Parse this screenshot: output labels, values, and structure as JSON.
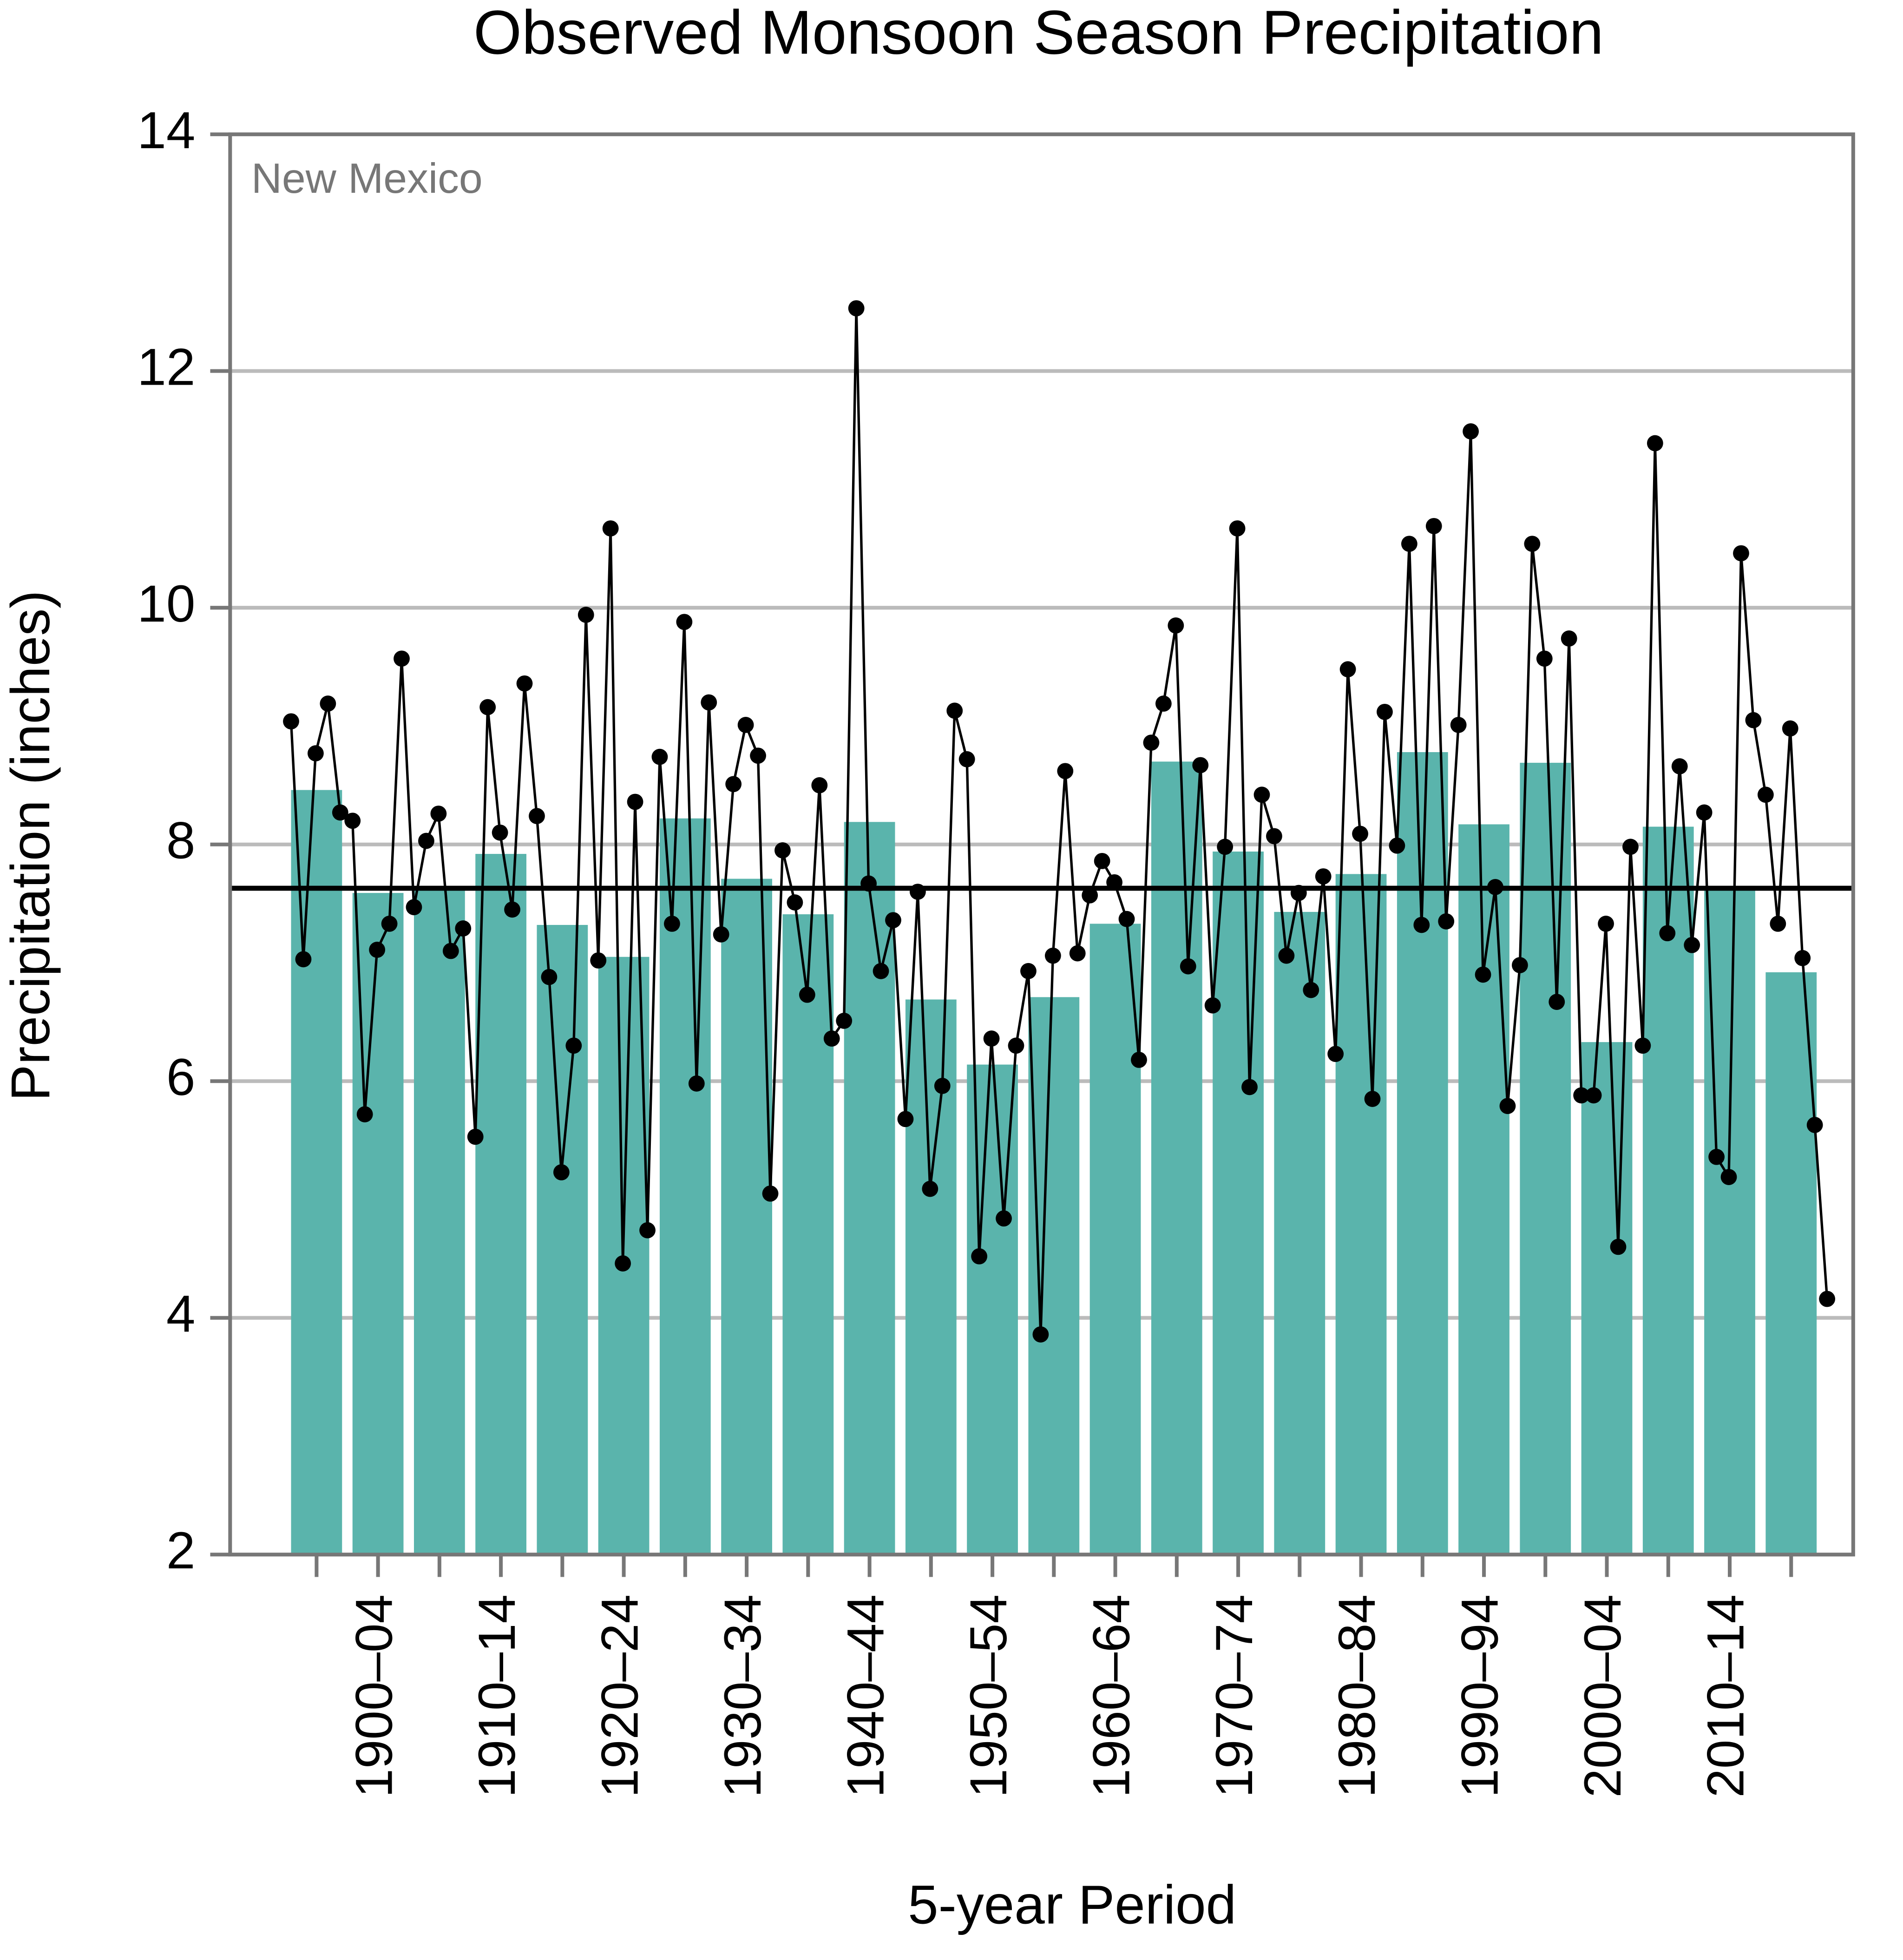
{
  "chart_data": {
    "type": "bar",
    "title": "Observed Monsoon Season Precipitation",
    "x_label": "5-year Period",
    "y_label": "Precipitation (inches)",
    "annotation": "New Mexico",
    "categories": [
      null,
      "1900–04",
      null,
      "1910–14",
      null,
      "1920–24",
      null,
      "1930–34",
      null,
      "1940–44",
      null,
      "1950–54",
      null,
      "1960–64",
      null,
      "1970–74",
      null,
      "1980–84",
      null,
      "1990–94",
      null,
      "2000–04",
      null,
      "2010–14",
      null
    ],
    "values": [
      8.46,
      7.59,
      7.62,
      7.92,
      7.32,
      7.05,
      8.22,
      7.71,
      7.41,
      8.19,
      6.69,
      6.14,
      6.71,
      7.33,
      8.7,
      7.94,
      7.43,
      7.75,
      8.78,
      8.17,
      8.69,
      6.33,
      8.15,
      7.65,
      6.92
    ],
    "color": "#5ab4ac",
    "annual_values": [
      9.04,
      7.03,
      8.77,
      9.19,
      8.27,
      8.2,
      5.72,
      7.11,
      7.33,
      9.57,
      7.47,
      8.03,
      8.26,
      7.1,
      7.29,
      5.53,
      9.16,
      8.1,
      7.45,
      9.36,
      8.24,
      6.88,
      5.23,
      6.3,
      9.94,
      7.02,
      10.67,
      4.46,
      8.36,
      4.74,
      8.74,
      7.33,
      9.88,
      5.98,
      9.2,
      7.24,
      8.51,
      9.01,
      8.75,
      5.05,
      7.95,
      7.51,
      6.73,
      8.5,
      6.36,
      6.51,
      12.53,
      7.67,
      6.93,
      7.36,
      5.68,
      7.6,
      5.09,
      5.96,
      9.13,
      8.72,
      4.52,
      6.36,
      4.84,
      6.3,
      6.93,
      3.86,
      7.06,
      8.62,
      7.08,
      7.57,
      7.86,
      7.68,
      7.37,
      6.18,
      8.86,
      9.19,
      9.85,
      6.97,
      8.67,
      6.64,
      7.98,
      10.67,
      5.95,
      8.42,
      8.07,
      7.06,
      7.59,
      6.77,
      7.73,
      6.23,
      9.48,
      8.09,
      5.85,
      9.12,
      7.99,
      10.54,
      7.32,
      10.69,
      7.35,
      9.01,
      11.49,
      6.9,
      7.64,
      5.79,
      6.98,
      10.54,
      9.57,
      6.67,
      9.74,
      5.88,
      5.88,
      7.33,
      4.6,
      7.98,
      6.3,
      11.39,
      7.25,
      8.66,
      7.15,
      8.27,
      5.36,
      5.19,
      10.46,
      9.05,
      8.42,
      7.33,
      8.98,
      7.04,
      5.63,
      4.16
    ],
    "line_color": "#000000",
    "average": 7.63,
    "ylim": [
      2,
      14
    ],
    "yticks": [
      2,
      4,
      6,
      8,
      10,
      12,
      14
    ],
    "grid": true
  }
}
